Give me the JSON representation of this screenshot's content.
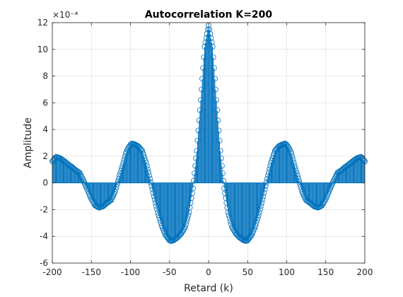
{
  "chart_data": {
    "type": "stem",
    "title": "Autocorrelation K=200",
    "xlabel": "Retard (k)",
    "ylabel": "Amplitude",
    "y_exponent_label": "×10⁻⁴",
    "xlim": [
      -200,
      200
    ],
    "ylim": [
      -6,
      12
    ],
    "x_ticks": [
      -200,
      -150,
      -100,
      -50,
      0,
      50,
      100,
      150,
      200
    ],
    "y_ticks": [
      -6,
      -4,
      -2,
      0,
      2,
      4,
      6,
      8,
      10,
      12
    ],
    "grid": true,
    "box": true,
    "color": "#0072BD",
    "marker": "circle-open",
    "x_range": [
      -200,
      200
    ],
    "x_step": 1,
    "symmetric": true,
    "curve_keypoints_positive_lags": {
      "x": [
        0,
        5,
        10,
        15,
        20,
        25,
        30,
        35,
        40,
        45,
        48,
        50,
        55,
        60,
        65,
        70,
        75,
        80,
        85,
        90,
        95,
        98,
        100,
        103,
        106,
        110,
        115,
        120,
        125,
        130,
        135,
        140,
        145,
        150,
        155,
        160,
        165,
        170,
        175,
        180,
        185,
        190,
        195,
        200
      ],
      "y": [
        11.8,
        10.2,
        6.2,
        2.4,
        -0.4,
        -2.2,
        -3.3,
        -3.8,
        -4.1,
        -4.3,
        -4.35,
        -4.3,
        -3.9,
        -3.2,
        -2.2,
        -1.0,
        0.3,
        1.5,
        2.4,
        2.75,
        2.9,
        2.95,
        2.85,
        2.6,
        2.2,
        1.3,
        0.3,
        -0.7,
        -1.3,
        -1.5,
        -1.75,
        -1.85,
        -1.7,
        -1.2,
        -0.5,
        0.15,
        0.75,
        0.95,
        1.2,
        1.4,
        1.65,
        1.85,
        1.95,
        1.6
      ]
    }
  }
}
